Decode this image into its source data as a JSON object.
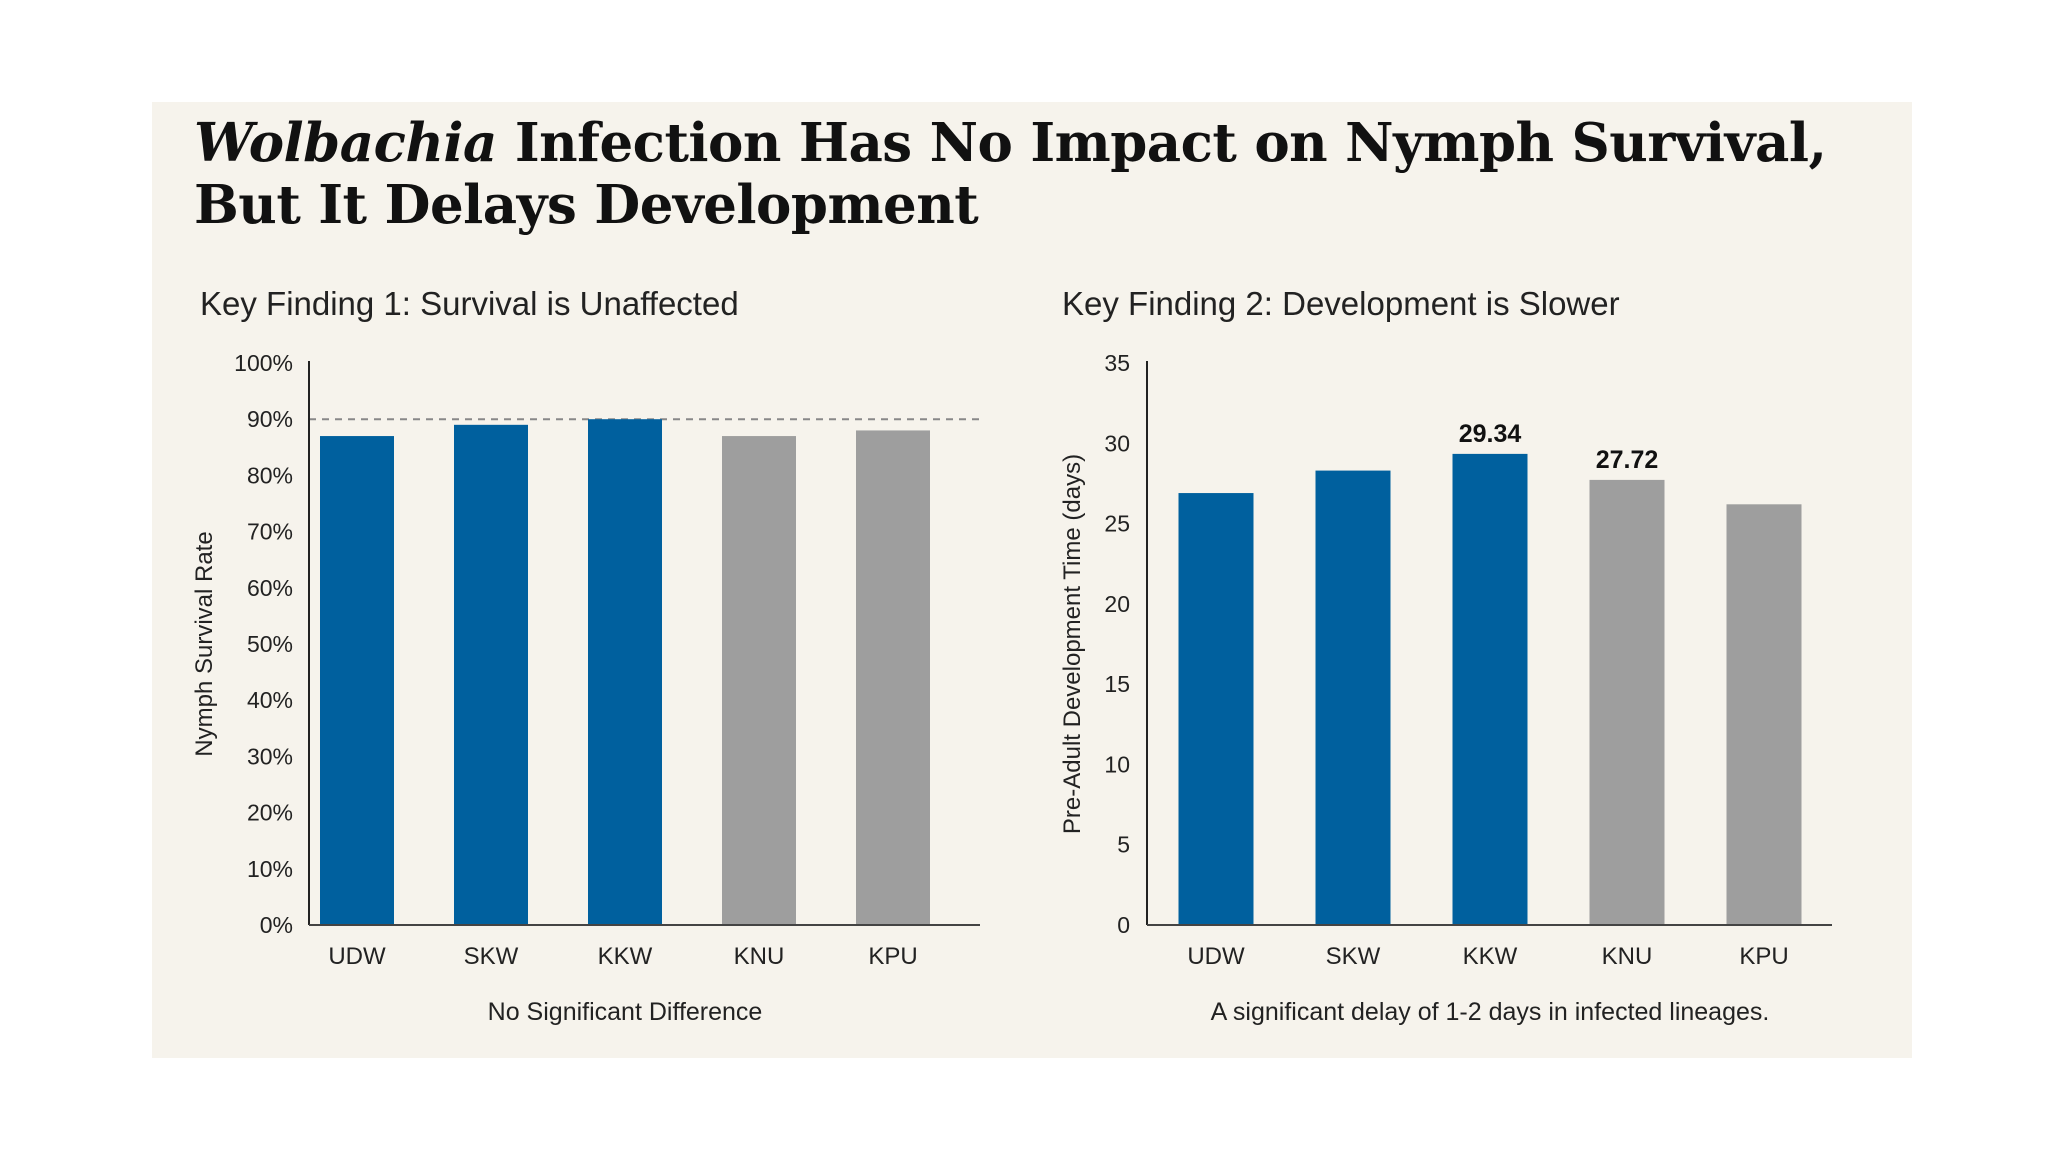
{
  "title_italic": "Wolbachia",
  "title_rest": " Infection Has No Impact on Nymph Survival, But It Delays Development",
  "colors": {
    "infected": "#00609e",
    "uninfected": "#9e9e9e",
    "background": "#f6f3ec"
  },
  "chart_data": [
    {
      "type": "bar",
      "subtitle": "Key Finding 1: Survival is Unaffected",
      "ylabel": "Nymph Survival Rate",
      "xlabel": "",
      "categories": [
        "UDW",
        "SKW",
        "KKW",
        "KNU",
        "KPU"
      ],
      "values": [
        87,
        89,
        90,
        87,
        88
      ],
      "groups": [
        "infected",
        "infected",
        "infected",
        "uninfected",
        "uninfected"
      ],
      "ylim": [
        0,
        100
      ],
      "yticks": [
        "0%",
        "10%",
        "20%",
        "30%",
        "40%",
        "50%",
        "60%",
        "70%",
        "80%",
        "90%",
        "100%"
      ],
      "reference_line": 90,
      "data_labels": [
        "",
        "",
        "",
        "",
        ""
      ],
      "caption": "No Significant Difference",
      "grid": false
    },
    {
      "type": "bar",
      "subtitle": "Key Finding 2: Development is Slower",
      "ylabel": "Pre-Adult Development Time (days)",
      "xlabel": "",
      "categories": [
        "UDW",
        "SKW",
        "KKW",
        "KNU",
        "KPU"
      ],
      "values": [
        26.9,
        28.3,
        29.34,
        27.72,
        26.2
      ],
      "groups": [
        "infected",
        "infected",
        "infected",
        "uninfected",
        "uninfected"
      ],
      "ylim": [
        0,
        35
      ],
      "yticks": [
        "0",
        "5",
        "10",
        "15",
        "20",
        "25",
        "30",
        "35"
      ],
      "reference_line": null,
      "data_labels": [
        "",
        "",
        "29.34",
        "27.72",
        ""
      ],
      "caption": "A significant delay of 1-2 days in infected lineages.",
      "grid": false
    }
  ]
}
